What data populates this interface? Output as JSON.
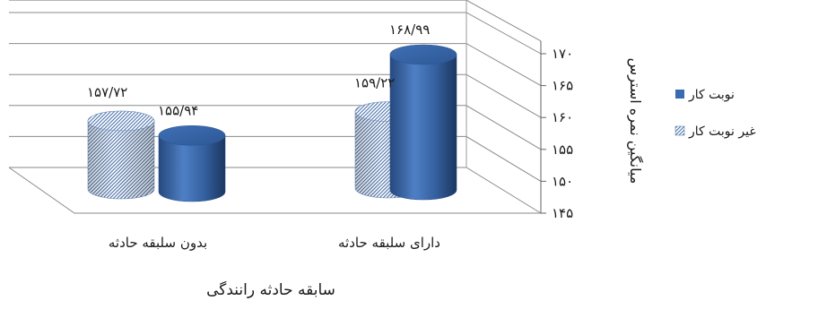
{
  "chart_data": {
    "type": "bar",
    "subtype": "3d-cylinder",
    "direction": "rtl",
    "xlabel": "سابقه حادثه رانندگی",
    "ylabel": "میانگین نمره استرس",
    "ylim": [
      145,
      172
    ],
    "yticks": [
      145,
      150,
      155,
      160,
      165,
      170
    ],
    "ytick_labels": [
      "۱۴۵",
      "۱۵۰",
      "۱۵۵",
      "۱۶۰",
      "۱۶۵",
      "۱۷۰"
    ],
    "grid": true,
    "legend_position": "right",
    "categories": [
      "دارای سلبقه حادثه",
      "بدون سلبقه حادثه"
    ],
    "series": [
      {
        "name": "نوبت کار",
        "values": [
          168.99,
          155.94
        ],
        "labels": [
          "۱۶۸/۹۹",
          "۱۵۵/۹۴"
        ],
        "color": "#3a6ab0",
        "pattern": "solid"
      },
      {
        "name": "غیر نوبت کار",
        "values": [
          159.22,
          157.72
        ],
        "labels": [
          "۱۵۹/۲۲",
          "۱۵۷/۷۲"
        ],
        "color": "#5b7fb5",
        "pattern": "hatched"
      }
    ]
  }
}
